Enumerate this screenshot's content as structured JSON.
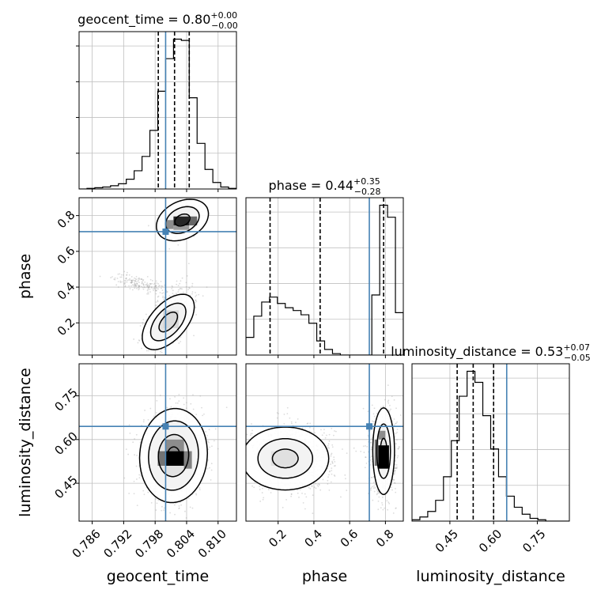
{
  "chart_data": {
    "type": "corner",
    "parameters": [
      "geocent_time",
      "phase",
      "luminosity_distance"
    ],
    "colors": {
      "truth": "#4682b4",
      "hist": "#000000",
      "grid": "#c0c0c0",
      "scatter": "#9a9a9a"
    },
    "grid": true,
    "truths": {
      "geocent_time": 0.8,
      "phase": 0.71,
      "luminosity_distance": 0.645
    },
    "titles": [
      {
        "param": "geocent_time",
        "main": "geocent_time = 0.80",
        "up": "+0.00",
        "down": "−0.00"
      },
      {
        "param": "phase",
        "main": "phase = 0.44",
        "up": "+0.35",
        "down": "−0.28"
      },
      {
        "param": "luminosity_distance",
        "main": "luminosity_distance = 0.53",
        "up": "+0.07",
        "down": "−0.05"
      }
    ],
    "axis_labels": {
      "geocent_time": "geocent_time",
      "phase": "phase",
      "luminosity_distance": "luminosity_distance"
    },
    "ranges": {
      "geocent_time": [
        0.7835,
        0.8135
      ],
      "phase": [
        0.02,
        0.9
      ],
      "luminosity_distance": [
        0.32,
        0.86
      ]
    },
    "ticks": {
      "geocent_time": [
        "0.786",
        "0.792",
        "0.798",
        "0.804",
        "0.810"
      ],
      "phase": [
        "0.2",
        "0.4",
        "0.6",
        "0.8"
      ],
      "luminosity_distance": [
        "0.45",
        "0.60",
        "0.75"
      ]
    },
    "histograms": {
      "geocent_time": {
        "quantiles": [
          0.7986,
          0.8017,
          0.8045
        ],
        "edges": [
          0.7835,
          0.785,
          0.7865,
          0.788,
          0.7895,
          0.791,
          0.7925,
          0.794,
          0.7955,
          0.797,
          0.7985,
          0.8,
          0.8015,
          0.803,
          0.8045,
          0.806,
          0.8075,
          0.809,
          0.8105,
          0.812,
          0.8135
        ],
        "counts": [
          0,
          1,
          2,
          3,
          5,
          8,
          15,
          28,
          50,
          90,
          150,
          200,
          230,
          228,
          140,
          70,
          30,
          10,
          3,
          1
        ]
      },
      "phase": {
        "quantiles": [
          0.155,
          0.435,
          0.79
        ],
        "edges": [
          0.02,
          0.064,
          0.108,
          0.152,
          0.196,
          0.24,
          0.284,
          0.328,
          0.372,
          0.416,
          0.46,
          0.504,
          0.548,
          0.592,
          0.636,
          0.68,
          0.724,
          0.768,
          0.812,
          0.856,
          0.9
        ],
        "counts": [
          25,
          55,
          75,
          82,
          73,
          67,
          63,
          57,
          45,
          20,
          8,
          2,
          0,
          0,
          0,
          0,
          85,
          212,
          195,
          60
        ]
      },
      "luminosity_distance": {
        "quantiles": [
          0.475,
          0.53,
          0.6
        ],
        "edges": [
          0.32,
          0.347,
          0.374,
          0.401,
          0.428,
          0.455,
          0.482,
          0.509,
          0.536,
          0.563,
          0.59,
          0.617,
          0.644,
          0.671,
          0.698,
          0.725,
          0.752,
          0.779,
          0.806,
          0.833,
          0.86
        ],
        "counts": [
          1,
          3,
          7,
          15,
          32,
          58,
          90,
          108,
          100,
          76,
          52,
          32,
          18,
          10,
          5,
          2,
          1,
          0,
          0,
          0
        ]
      }
    },
    "pairs": [
      {
        "x": "geocent_time",
        "y": "phase",
        "clusters": [
          {
            "cx": 0.8032,
            "cy": 0.77,
            "sx": 0.0016,
            "sy": 0.035,
            "rho": 0.3,
            "n": 700
          },
          {
            "cx": 0.8008,
            "cy": 0.23,
            "sx": 0.0022,
            "sy": 0.08,
            "rho": 0.55,
            "n": 900
          },
          {
            "cx": 0.795,
            "cy": 0.42,
            "sx": 0.0025,
            "sy": 0.025,
            "rho": -0.6,
            "n": 180
          }
        ],
        "contours": [
          {
            "cx": 0.8032,
            "cy": 0.775,
            "sx": 0.0032,
            "sy": 0.075,
            "rho": 0.3,
            "levels": [
              0.45,
              1.0,
              1.55
            ]
          },
          {
            "cx": 0.8005,
            "cy": 0.205,
            "sx": 0.0032,
            "sy": 0.1,
            "rho": 0.55,
            "levels": [
              0.55,
              1.05,
              1.55
            ]
          }
        ],
        "hist2d": [
          {
            "x0": 0.8015,
            "x1": 0.8045,
            "y0": 0.745,
            "y1": 0.795,
            "shade": 0.15
          },
          {
            "x0": 0.8045,
            "x1": 0.806,
            "y0": 0.745,
            "y1": 0.795,
            "shade": 0.4
          },
          {
            "x0": 0.8,
            "x1": 0.8015,
            "y0": 0.725,
            "y1": 0.775,
            "shade": 0.55
          },
          {
            "x0": 0.8015,
            "x1": 0.8045,
            "y0": 0.72,
            "y1": 0.745,
            "shade": 0.6
          },
          {
            "x0": 0.7995,
            "x1": 0.8025,
            "y0": 0.17,
            "y1": 0.27,
            "shade": 0.85
          }
        ]
      },
      {
        "x": "geocent_time",
        "y": "luminosity_distance",
        "clusters": [
          {
            "cx": 0.8015,
            "cy": 0.545,
            "sx": 0.0028,
            "sy": 0.07,
            "rho": 0.05,
            "n": 1500
          }
        ],
        "contours": [
          {
            "cx": 0.8015,
            "cy": 0.545,
            "sx": 0.0034,
            "sy": 0.085,
            "rho": 0.05,
            "levels": [
              0.35,
              0.85,
              1.4,
              1.9
            ]
          }
        ],
        "hist2d": [
          {
            "x0": 0.8,
            "x1": 0.8035,
            "y0": 0.51,
            "y1": 0.56,
            "shade": 0.0
          },
          {
            "x0": 0.7985,
            "x1": 0.8,
            "y0": 0.51,
            "y1": 0.56,
            "shade": 0.45
          },
          {
            "x0": 0.8035,
            "x1": 0.805,
            "y0": 0.5,
            "y1": 0.56,
            "shade": 0.5
          },
          {
            "x0": 0.8,
            "x1": 0.8035,
            "y0": 0.56,
            "y1": 0.6,
            "shade": 0.55
          }
        ]
      },
      {
        "x": "phase",
        "y": "luminosity_distance",
        "clusters": [
          {
            "cx": 0.27,
            "cy": 0.54,
            "sx": 0.12,
            "sy": 0.055,
            "rho": 0.0,
            "n": 1000
          },
          {
            "cx": 0.79,
            "cy": 0.555,
            "sx": 0.035,
            "sy": 0.07,
            "rho": 0.0,
            "n": 900
          }
        ],
        "contours": [
          {
            "cx": 0.24,
            "cy": 0.535,
            "sx": 0.18,
            "sy": 0.08,
            "rho": 0.0,
            "levels": [
              0.4,
              0.85,
              1.35
            ]
          },
          {
            "cx": 0.79,
            "cy": 0.56,
            "sx": 0.045,
            "sy": 0.11,
            "rho": 0.0,
            "levels": [
              0.4,
              0.85,
              1.35
            ]
          }
        ],
        "hist2d": [
          {
            "x0": 0.76,
            "x1": 0.82,
            "y0": 0.5,
            "y1": 0.58,
            "shade": 0.0
          },
          {
            "x0": 0.74,
            "x1": 0.76,
            "y0": 0.51,
            "y1": 0.6,
            "shade": 0.45
          },
          {
            "x0": 0.76,
            "x1": 0.8,
            "y0": 0.6,
            "y1": 0.63,
            "shade": 0.55
          },
          {
            "x0": 0.16,
            "x1": 0.3,
            "y0": 0.51,
            "y1": 0.56,
            "shade": 0.88
          }
        ]
      }
    ]
  }
}
